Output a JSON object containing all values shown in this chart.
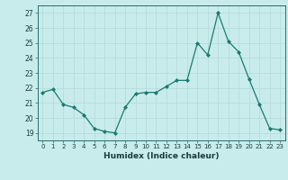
{
  "x": [
    0,
    1,
    2,
    3,
    4,
    5,
    6,
    7,
    8,
    9,
    10,
    11,
    12,
    13,
    14,
    15,
    16,
    17,
    18,
    19,
    20,
    21,
    22,
    23
  ],
  "y": [
    21.7,
    21.9,
    20.9,
    20.7,
    20.2,
    19.3,
    19.1,
    19.0,
    20.7,
    21.6,
    21.7,
    21.7,
    22.1,
    22.5,
    22.5,
    25.0,
    24.2,
    27.0,
    25.1,
    24.4,
    22.6,
    20.9,
    19.3,
    19.2
  ],
  "line_color": "#1a7a6e",
  "marker_color": "#1a7a6e",
  "bg_color": "#c8ecec",
  "grid_color": "#b8dcdc",
  "xlabel": "Humidex (Indice chaleur)",
  "ylim": [
    18.5,
    27.5
  ],
  "xlim": [
    -0.5,
    23.5
  ],
  "yticks": [
    19,
    20,
    21,
    22,
    23,
    24,
    25,
    26,
    27
  ],
  "xticks": [
    0,
    1,
    2,
    3,
    4,
    5,
    6,
    7,
    8,
    9,
    10,
    11,
    12,
    13,
    14,
    15,
    16,
    17,
    18,
    19,
    20,
    21,
    22,
    23
  ]
}
